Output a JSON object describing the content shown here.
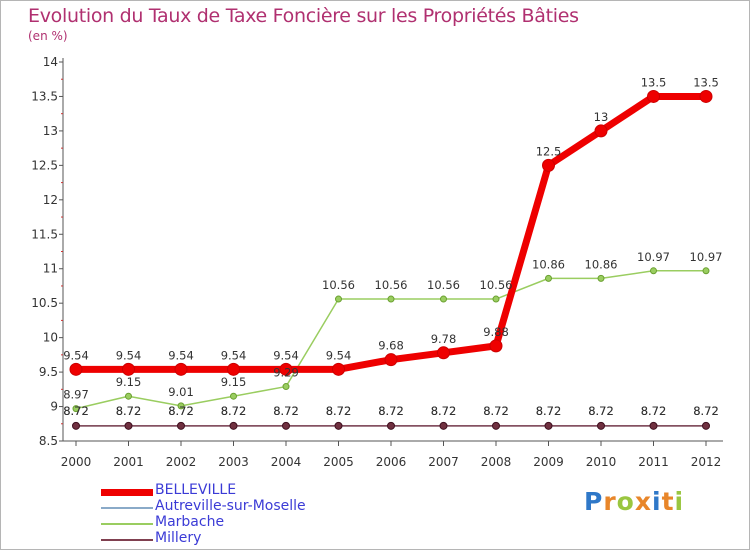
{
  "title": "Evolution du Taux de Taxe Foncière sur les Propriétés Bâties",
  "subtitle": "(en %)",
  "logo": {
    "text": "Proxiti",
    "colors": [
      "#2f78c8",
      "#e8862a",
      "#9ac640",
      "#e8862a",
      "#2f78c8",
      "#e8862a",
      "#9ac640"
    ]
  },
  "chart_data": {
    "type": "line",
    "title": "Evolution du Taux de Taxe Foncière sur les Propriétés Bâties",
    "ylabel": "(en %)",
    "xlabel": "",
    "ylim": [
      8.5,
      14
    ],
    "yticks": [
      "8.5",
      "9",
      "9.5",
      "10",
      "10.5",
      "11",
      "11.5",
      "12",
      "12.5",
      "13",
      "13.5",
      "14"
    ],
    "x": [
      "2000",
      "2001",
      "2002",
      "2003",
      "2004",
      "2005",
      "2006",
      "2007",
      "2008",
      "2009",
      "2010",
      "2011",
      "2012"
    ],
    "grid": false,
    "legend_position": "bottom-left",
    "series": [
      {
        "name": "BELLEVILLE",
        "color": "#ee0000",
        "values": [
          9.54,
          9.54,
          9.54,
          9.54,
          9.54,
          9.54,
          9.68,
          9.78,
          9.88,
          12.5,
          13,
          13.5,
          13.5
        ],
        "labels": [
          "9.54",
          "9.54",
          "9.54",
          "9.54",
          "9.54",
          "9.54",
          "9.68",
          "9.78",
          "9.88",
          "12.5",
          "13",
          "13.5",
          "13.5"
        ]
      },
      {
        "name": "Autreville-sur-Moselle",
        "color": "#8aaac8",
        "values": [
          8.72,
          8.72,
          8.72,
          8.72,
          8.72,
          8.72,
          8.72,
          8.72,
          8.72,
          8.72,
          8.72,
          8.72,
          8.72
        ],
        "labels": [
          "8.72",
          "8.72",
          "8.72",
          "8.72",
          "8.72",
          "8.72",
          "8.72",
          "8.72",
          "8.72",
          "8.72",
          "8.72",
          "8.72",
          "8.72"
        ]
      },
      {
        "name": "Marbache",
        "color": "#9acd60",
        "values": [
          8.97,
          9.15,
          9.01,
          9.15,
          9.29,
          10.56,
          10.56,
          10.56,
          10.56,
          10.86,
          10.86,
          10.97,
          10.97
        ],
        "labels": [
          "8.97",
          "9.15",
          "9.01",
          "9.15",
          "9.29",
          "10.56",
          "10.56",
          "10.56",
          "10.56",
          "10.86",
          "10.86",
          "10.97",
          "10.97"
        ]
      },
      {
        "name": "Millery",
        "color": "#804050",
        "values": [
          8.72,
          8.72,
          8.72,
          8.72,
          8.72,
          8.72,
          8.72,
          8.72,
          8.72,
          8.72,
          8.72,
          8.72,
          8.72
        ],
        "labels": [
          "8.72",
          "8.72",
          "8.72",
          "8.72",
          "8.72",
          "8.72",
          "8.72",
          "8.72",
          "8.72",
          "8.72",
          "8.72",
          "8.72",
          "8.72"
        ]
      }
    ]
  }
}
